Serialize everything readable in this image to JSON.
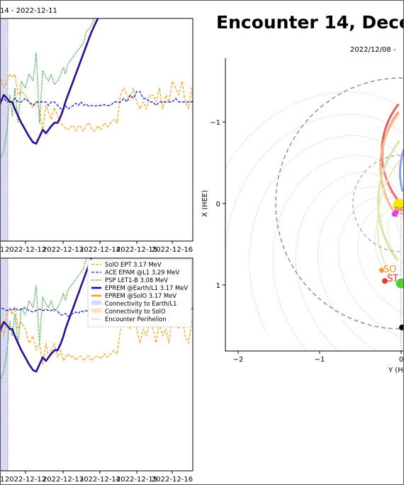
{
  "chart_data": [
    {
      "type": "line",
      "panel": "top-left",
      "title_fragment": "14 - 2022-12-11",
      "x_tick_labels": [
        "1",
        "2022-12-12",
        "2022-12-13",
        "2022-12-14",
        "2022-12-15",
        "2022-12-16"
      ],
      "x": [
        9.7,
        9.8,
        9.9,
        10.0,
        10.08,
        10.16,
        10.24,
        10.34,
        10.44,
        10.56,
        10.68,
        10.8,
        10.9,
        11.0,
        11.1,
        11.2,
        11.28,
        11.36,
        11.46,
        11.56,
        11.66,
        11.74,
        11.8,
        11.88,
        11.96,
        12.04,
        12.12,
        12.2,
        12.28,
        12.36,
        12.44,
        12.52,
        12.6,
        12.7,
        12.8,
        12.9,
        13.0,
        13.1,
        13.2,
        13.3,
        13.4,
        13.5,
        13.6,
        13.7,
        13.8,
        13.9,
        14.0,
        14.1,
        14.2,
        14.3,
        14.4,
        14.5,
        14.6,
        14.7,
        14.8,
        14.9,
        15.0,
        15.1,
        15.2,
        15.3,
        15.4,
        15.5,
        15.6,
        15.7,
        15.8,
        15.9
      ],
      "series": [
        {
          "name": "SolO EPT 3.17 MeV",
          "values": [
            0.33,
            0.34,
            0.2,
            0.3,
            0.4,
            0.35,
            0.4,
            0.1,
            0.15,
            0.1,
            0.0,
            -0.08,
            0.0,
            -0.12,
            -0.4,
            -0.05,
            -0.15,
            -0.25,
            -0.08,
            -0.2,
            -0.3,
            -0.35,
            -0.38,
            -0.4,
            -0.36,
            -0.34,
            -0.42,
            -0.34,
            -0.36,
            -0.42,
            -0.34,
            -0.3,
            -0.38,
            -0.42,
            -0.34,
            -0.4,
            -0.3,
            -0.36,
            -0.3,
            -0.25,
            -0.3,
            0.1,
            0.2,
            0.1,
            0.05,
            0.2,
            0.0,
            -0.1,
            0.0,
            -0.1,
            0.1,
            0.1,
            0.0,
            0.2,
            -0.1,
            0.1,
            0.0,
            0.3,
            0.2,
            0.1,
            0.3,
            0.0,
            -0.1,
            0.2,
            0.2,
            0.3
          ]
        },
        {
          "name": "ACE EPAM @L1 3.29 MeV",
          "values": [
            0.0,
            0.0,
            0.05,
            0.0,
            0.02,
            0.0,
            0.05,
            0.0,
            0.0,
            0.05,
            0.0,
            -0.05,
            0.0,
            0.0,
            0.0,
            0.0,
            -0.05,
            0.0,
            0.0,
            -0.05,
            -0.1,
            -0.1,
            -0.05,
            -0.1,
            -0.08,
            -0.05,
            -0.02,
            -0.05,
            0.0,
            -0.05,
            -0.03,
            -0.06,
            -0.05,
            -0.06,
            -0.05,
            -0.05,
            -0.04,
            -0.05,
            -0.05,
            0.0,
            0.0,
            0.0,
            0.05,
            0.0,
            0.1,
            0.05,
            0.15,
            0.15,
            0.05,
            0.05,
            0.0,
            0.0,
            -0.05,
            0.0,
            0.0,
            0.0,
            0.0,
            0.0,
            0.05,
            0.0,
            0.0,
            0.0,
            0.0,
            0.0,
            0.05,
            0.0
          ]
        },
        {
          "name": "PSP LET1-B 3.08 MeV",
          "values": [
            -1.1,
            -0.8,
            -0.7,
            -0.4,
            0.1,
            -0.2,
            0.2,
            -0.3,
            0.3,
            0.2,
            0.4,
            0.3,
            0.7,
            -0.3,
            0.45,
            0.35,
            0.3,
            0.4,
            0.25,
            0.3,
            0.4,
            0.5,
            0.4,
            0.55,
            0.6,
            0.65,
            0.7,
            0.75,
            0.8,
            0.85,
            1.0,
            1.05,
            1.1,
            1.2,
            1.4,
            1.5,
            1.6,
            1.7,
            1.8,
            1.9,
            2.0,
            2.1,
            2.0,
            2.0,
            2.0,
            2.0,
            2.0,
            2.0,
            2.0,
            2.0,
            2.0,
            2.0,
            2.0,
            2.0,
            2.0,
            2.0,
            2.0,
            2.0,
            2.0,
            2.0,
            2.0,
            2.0,
            2.0,
            2.0,
            2.0,
            2.0
          ]
        },
        {
          "name": "EPREM @Earth/L1 3.17 MeV",
          "values": [
            -0.2,
            0.0,
            0.1,
            0.05,
            0.0,
            0.0,
            -0.1,
            -0.2,
            -0.3,
            -0.4,
            -0.5,
            -0.58,
            -0.6,
            -0.5,
            -0.4,
            -0.45,
            -0.4,
            -0.35,
            -0.3,
            -0.3,
            -0.2,
            -0.1,
            0.0,
            0.1,
            0.2,
            0.3,
            0.4,
            0.5,
            0.6,
            0.7,
            0.8,
            0.9,
            1.0,
            1.1,
            1.2,
            1.3,
            1.4,
            1.5,
            1.6,
            1.7,
            1.72,
            1.75,
            1.74,
            1.75,
            1.73,
            1.74,
            1.72,
            1.73,
            1.74,
            1.72,
            1.73,
            1.72,
            1.7,
            1.71,
            1.7,
            1.72,
            1.7,
            1.71,
            1.7,
            1.72,
            1.71,
            1.7,
            1.72,
            1.71,
            1.7,
            1.7
          ]
        },
        {
          "name": "EPREM @SolO 3.17 MeV",
          "values": [
            -0.2,
            0.0,
            0.1,
            0.05,
            0.0,
            0.0,
            -0.1,
            -0.2,
            -0.3,
            -0.4,
            -0.5,
            -0.58,
            -0.6,
            -0.5,
            -0.4,
            -0.45,
            -0.4,
            -0.35,
            -0.3,
            -0.3,
            -0.2,
            -0.1,
            0.0,
            0.1,
            0.2,
            0.3,
            0.4,
            0.5,
            0.6,
            0.7,
            0.8,
            0.9,
            1.0,
            1.1,
            1.2,
            1.3,
            1.4,
            1.5,
            1.6,
            1.7,
            1.72,
            1.75,
            1.74,
            1.75,
            1.73,
            1.74,
            1.72,
            1.73,
            1.74,
            1.72,
            1.73,
            1.72,
            1.7,
            1.71,
            1.7,
            1.72,
            1.7,
            1.71,
            1.7,
            1.72,
            1.71,
            1.7,
            1.72,
            1.71,
            1.7,
            1.7
          ]
        }
      ]
    },
    {
      "type": "line",
      "panel": "bottom-left",
      "x_tick_labels": [
        "1",
        "2022-12-12",
        "2022-12-13",
        "2022-12-14",
        "2022-12-15",
        "2022-12-16"
      ],
      "legend": {
        "placement": "top-right",
        "entries": [
          "SolO EPT 3.17 MeV",
          "ACE EPAM @L1 3.29 MeV",
          "PSP LET1-B 3.08 MeV",
          "EPREM @Earth/L1 3.17 MeV",
          "EPREM @SolO 3.17 MeV",
          "Connectivity to Earth/L1",
          "Connectivity to SolO",
          "Encounter Perihelion"
        ]
      },
      "x": [
        9.7,
        9.8,
        9.9,
        10.0,
        10.08,
        10.16,
        10.24,
        10.34,
        10.44,
        10.56,
        10.68,
        10.8,
        10.9,
        11.0,
        11.1,
        11.2,
        11.28,
        11.36,
        11.46,
        11.56,
        11.66,
        11.74,
        11.8,
        11.88,
        11.96,
        12.04,
        12.12,
        12.2,
        12.28,
        12.36,
        12.44,
        12.52,
        12.6,
        12.7,
        12.8,
        12.9,
        13.0,
        13.1,
        13.2,
        13.3,
        13.4,
        13.5,
        13.6,
        13.7,
        13.8,
        13.9,
        14.0,
        14.1,
        14.2,
        14.3,
        14.4,
        14.5,
        14.6,
        14.7,
        14.8,
        14.9,
        15.0,
        15.1,
        15.2,
        15.3,
        15.4,
        15.5,
        15.6,
        15.7,
        15.8,
        15.9
      ],
      "series": [
        {
          "name": "SolO EPT 3.17 MeV",
          "values": [
            0.0,
            0.1,
            -0.1,
            0.2,
            0.3,
            0.2,
            0.3,
            0.0,
            0.1,
            0.0,
            -0.2,
            -0.1,
            -0.3,
            -0.2,
            -0.5,
            -0.2,
            -0.4,
            -0.3,
            -0.2,
            -0.4,
            -0.3,
            -0.45,
            -0.4,
            -0.35,
            -0.4,
            -0.38,
            -0.44,
            -0.4,
            -0.38,
            -0.45,
            -0.4,
            -0.38,
            -0.45,
            -0.4,
            -0.38,
            -0.42,
            -0.35,
            -0.4,
            -0.35,
            -0.3,
            -0.35,
            0.0,
            0.2,
            0.1,
            0.0,
            0.2,
            0.0,
            -0.2,
            0.0,
            -0.1,
            0.1,
            0.0,
            -0.2,
            0.1,
            -0.1,
            0.0,
            -0.2,
            0.2,
            0.1,
            0.0,
            0.2,
            -0.1,
            -0.2,
            0.1,
            0.1,
            0.2
          ]
        },
        {
          "name": "ACE EPAM @L1 3.29 MeV",
          "values": [
            0.3,
            0.3,
            0.28,
            0.26,
            0.28,
            0.26,
            0.3,
            0.26,
            0.28,
            0.3,
            0.26,
            0.24,
            0.26,
            0.28,
            0.26,
            0.28,
            0.26,
            0.26,
            0.28,
            0.25,
            0.2,
            0.2,
            0.22,
            0.18,
            0.2,
            0.22,
            0.24,
            0.22,
            0.26,
            0.24,
            0.26,
            0.24,
            0.24,
            0.22,
            0.24,
            0.22,
            0.24,
            0.22,
            0.22,
            0.26,
            0.28,
            0.26,
            0.3,
            0.28,
            0.4,
            0.35,
            0.45,
            0.45,
            0.35,
            0.35,
            0.3,
            0.3,
            0.25,
            0.3,
            0.3,
            0.3,
            0.3,
            0.3,
            0.35,
            0.3,
            0.3,
            0.3,
            0.3,
            0.28,
            0.35,
            0.3
          ]
        },
        {
          "name": "PSP LET1-B 3.08 MeV",
          "values": [
            -1.0,
            -0.7,
            -0.6,
            -0.3,
            0.1,
            -0.1,
            0.2,
            -0.2,
            0.3,
            0.2,
            0.4,
            0.3,
            0.6,
            -0.2,
            0.45,
            0.35,
            0.3,
            0.4,
            0.25,
            0.3,
            0.4,
            0.5,
            0.4,
            0.55,
            0.6,
            0.65,
            0.7,
            0.75,
            0.8,
            0.85,
            1.0,
            1.05,
            1.1,
            1.2,
            1.4,
            1.5,
            1.6,
            1.7,
            1.8,
            1.9,
            2.0,
            2.1,
            2.0,
            2.0,
            2.0,
            2.0,
            2.0,
            2.0,
            2.0,
            2.0,
            2.0,
            2.0,
            2.0,
            2.0,
            2.0,
            2.0,
            2.0,
            2.0,
            2.0,
            2.0,
            2.0,
            2.0,
            2.0,
            2.0,
            2.0,
            2.0
          ]
        },
        {
          "name": "EPREM @Earth/L1 3.17 MeV",
          "values": [
            -0.2,
            0.0,
            0.1,
            0.05,
            0.0,
            0.0,
            -0.1,
            -0.2,
            -0.3,
            -0.4,
            -0.5,
            -0.58,
            -0.6,
            -0.5,
            -0.4,
            -0.45,
            -0.4,
            -0.35,
            -0.3,
            -0.3,
            -0.2,
            -0.1,
            0.0,
            0.1,
            0.2,
            0.3,
            0.4,
            0.5,
            0.6,
            0.7,
            0.8,
            0.9,
            1.0,
            1.1,
            1.2,
            1.3,
            1.4,
            1.5,
            1.6,
            1.7,
            1.72,
            1.75,
            1.74,
            1.75,
            1.73,
            1.74,
            1.72,
            1.73,
            1.74,
            1.72,
            1.73,
            1.72,
            1.7,
            1.71,
            1.7,
            1.72,
            1.7,
            1.71,
            1.7,
            1.72,
            1.71,
            1.7,
            1.72,
            1.71,
            1.7,
            1.7
          ]
        },
        {
          "name": "EPREM @SolO 3.17 MeV",
          "values": [
            -0.2,
            0.0,
            0.1,
            0.05,
            0.0,
            0.0,
            -0.1,
            -0.2,
            -0.3,
            -0.4,
            -0.5,
            -0.58,
            -0.6,
            -0.5,
            -0.4,
            -0.45,
            -0.4,
            -0.35,
            -0.3,
            -0.3,
            -0.2,
            -0.1,
            0.0,
            0.1,
            0.2,
            0.3,
            0.4,
            0.5,
            0.6,
            0.7,
            0.8,
            0.9,
            1.0,
            1.1,
            1.2,
            1.3,
            1.4,
            1.5,
            1.6,
            1.7,
            1.72,
            1.75,
            1.74,
            1.75,
            1.73,
            1.74,
            1.72,
            1.73,
            1.74,
            1.72,
            1.73,
            1.72,
            1.7,
            1.71,
            1.7,
            1.72,
            1.7,
            1.71,
            1.7,
            1.72,
            1.71,
            1.7,
            1.72,
            1.71,
            1.7,
            1.7
          ]
        }
      ]
    },
    {
      "type": "scatter",
      "panel": "right-orbit-map",
      "title": "Encounter 14, Decem",
      "subtitle": "2022/12/08 -",
      "xlabel": "Y (HE",
      "ylabel": "X (HEE)",
      "xlim": [
        -2.2,
        0.05
      ],
      "ylim": [
        1.8,
        -1.8
      ],
      "x_ticks": [
        -2,
        -1,
        0
      ],
      "x_tick_labels": [
        "−2",
        "−1",
        "0"
      ],
      "y_ticks": [
        -1,
        0,
        1
      ],
      "y_tick_labels": [
        "−1",
        "0",
        "1"
      ],
      "bodies": [
        {
          "label": "SO",
          "x": -0.24,
          "y": 0.82,
          "color": "#f39c2b"
        },
        {
          "label": "ST",
          "x": -0.2,
          "y": 0.95,
          "color": "#e53935"
        },
        {
          "label": "PS",
          "x": -0.06,
          "y": 0.11,
          "color": "#e040e0"
        }
      ],
      "points": [
        {
          "x": -0.2,
          "y": 0.95,
          "color": "#e53935"
        },
        {
          "x": -0.08,
          "y": 0.13,
          "color": "#e040e0"
        },
        {
          "x": 0.01,
          "y": 1.52,
          "color": "#000000"
        },
        {
          "x": 0.0,
          "y": 0.98,
          "color": "#4fce2f"
        },
        {
          "x": -0.02,
          "y": 0.02,
          "color": "#ffe600"
        }
      ]
    }
  ],
  "colors": {
    "solo": "#f5a623",
    "ace": "#1a1adb",
    "psp": "#2e9e2e",
    "eprem_earth": "#0a0acc",
    "eprem_solo": "#f39c2b",
    "connect_earth": "#d8d8f8"
  }
}
